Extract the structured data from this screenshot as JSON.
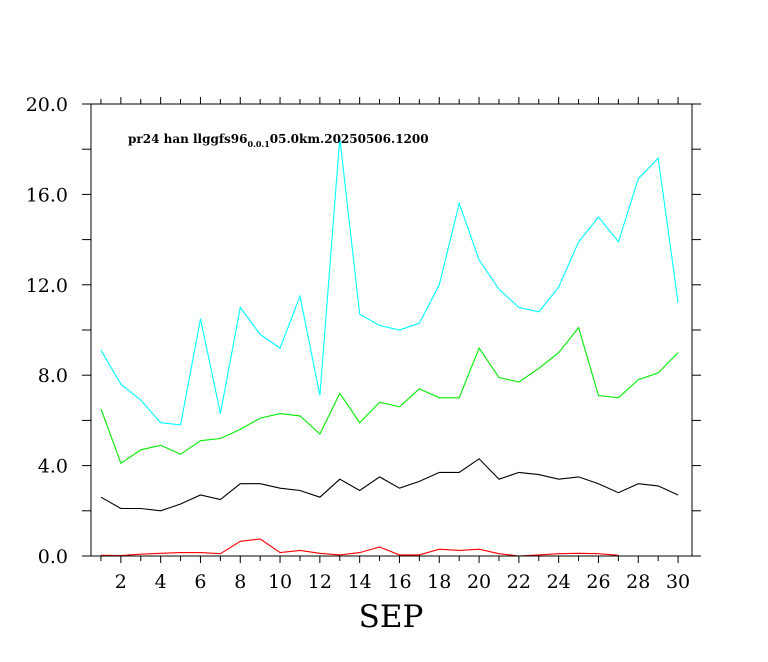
{
  "chart_data": {
    "type": "line",
    "title": "",
    "annotation": {
      "prefix": "pr24 han llggfs96",
      "subscript": "0.0.1",
      "suffix": "05.0km.20250506.1200"
    },
    "xlabel": "SEP",
    "ylabel": "",
    "xlim": [
      0.5,
      30.7
    ],
    "ylim": [
      0,
      20
    ],
    "x_ticks": [
      2,
      4,
      6,
      8,
      10,
      12,
      14,
      16,
      18,
      20,
      22,
      24,
      26,
      28,
      30
    ],
    "x_tick_labels": [
      "2",
      "4",
      "6",
      "8",
      "10",
      "12",
      "14",
      "16",
      "18",
      "20",
      "22",
      "24",
      "26",
      "28",
      "30"
    ],
    "y_ticks": [
      0,
      4,
      8,
      12,
      16,
      20
    ],
    "y_tick_labels": [
      "0.0",
      "4.0",
      "8.0",
      "12.0",
      "16.0",
      "20.0"
    ],
    "x": [
      1,
      2,
      3,
      4,
      5,
      6,
      7,
      8,
      9,
      10,
      11,
      12,
      13,
      14,
      15,
      16,
      17,
      18,
      19,
      20,
      21,
      22,
      23,
      24,
      25,
      26,
      27,
      28,
      29,
      30
    ],
    "series": [
      {
        "color": "#00ffff",
        "values": [
          9.1,
          7.6,
          6.9,
          5.9,
          5.8,
          10.5,
          6.3,
          11.0,
          9.8,
          9.2,
          11.5,
          7.1,
          18.5,
          10.7,
          10.2,
          10.0,
          10.3,
          12.0,
          15.6,
          13.1,
          11.8,
          11.0,
          10.8,
          11.9,
          13.9,
          15.0,
          13.9,
          16.7,
          17.6,
          11.2
        ]
      },
      {
        "color": "#00ee00",
        "values": [
          6.5,
          4.1,
          4.7,
          4.9,
          4.5,
          5.1,
          5.2,
          5.6,
          6.1,
          6.3,
          6.2,
          5.4,
          7.2,
          5.9,
          6.8,
          6.6,
          7.4,
          7.0,
          7.0,
          9.2,
          7.9,
          7.7,
          8.3,
          9.0,
          10.1,
          7.1,
          7.0,
          7.8,
          8.1,
          9.0
        ]
      },
      {
        "color": "#000000",
        "values": [
          2.6,
          2.1,
          2.1,
          2.0,
          2.3,
          2.7,
          2.5,
          3.2,
          3.2,
          3.0,
          2.9,
          2.6,
          3.4,
          2.9,
          3.5,
          3.0,
          3.3,
          3.7,
          3.7,
          4.3,
          3.4,
          3.7,
          3.6,
          3.4,
          3.5,
          3.2,
          2.8,
          3.2,
          3.1,
          2.7
        ]
      },
      {
        "color": "#ff0000",
        "values": [
          0.03,
          0.02,
          0.08,
          0.12,
          0.15,
          0.15,
          0.1,
          0.65,
          0.75,
          0.15,
          0.25,
          0.12,
          0.05,
          0.15,
          0.4,
          0.05,
          0.05,
          0.3,
          0.25,
          0.3,
          0.1,
          0.0,
          0.05,
          0.1,
          0.12,
          0.1,
          0.03,
          null,
          null,
          null
        ]
      }
    ]
  }
}
